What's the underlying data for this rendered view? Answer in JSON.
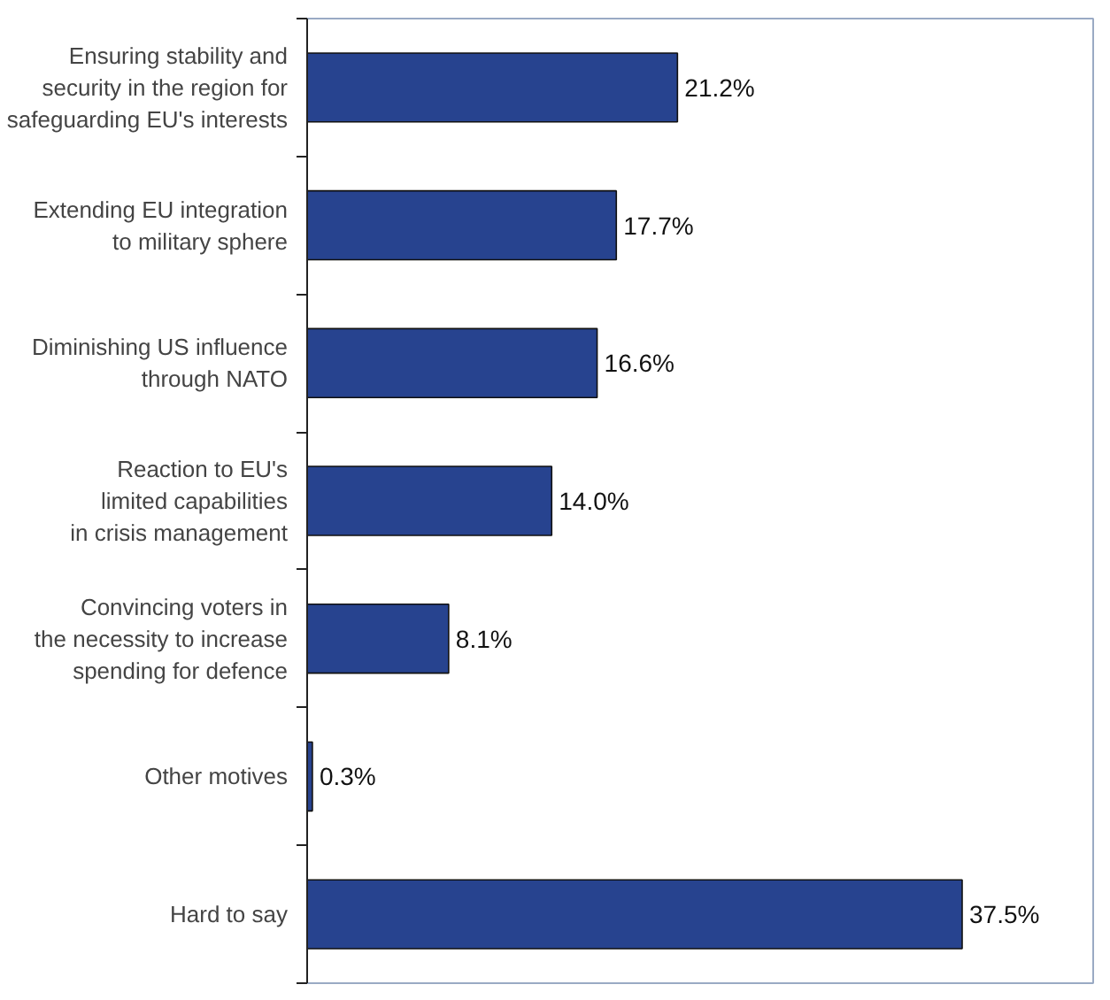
{
  "chart_data": {
    "type": "bar",
    "orientation": "horizontal",
    "categories": [
      "Ensuring stability and\nsecurity in the region for\nsafeguarding EU's interests",
      "Extending EU integration\nto military sphere",
      "Diminishing US influence\nthrough NATO",
      "Reaction to EU's\nlimited capabilities\nin crisis management",
      "Convincing voters in\nthe necessity to increase\nspending for defence",
      "Other motives",
      "Hard to say"
    ],
    "values": [
      21.2,
      17.7,
      16.6,
      14.0,
      8.1,
      0.3,
      37.5
    ],
    "value_labels": [
      "21.2%",
      "17.7%",
      "16.6%",
      "14.0%",
      "8.1%",
      "0.3%",
      "37.5%"
    ],
    "color": "#27438f"
  }
}
